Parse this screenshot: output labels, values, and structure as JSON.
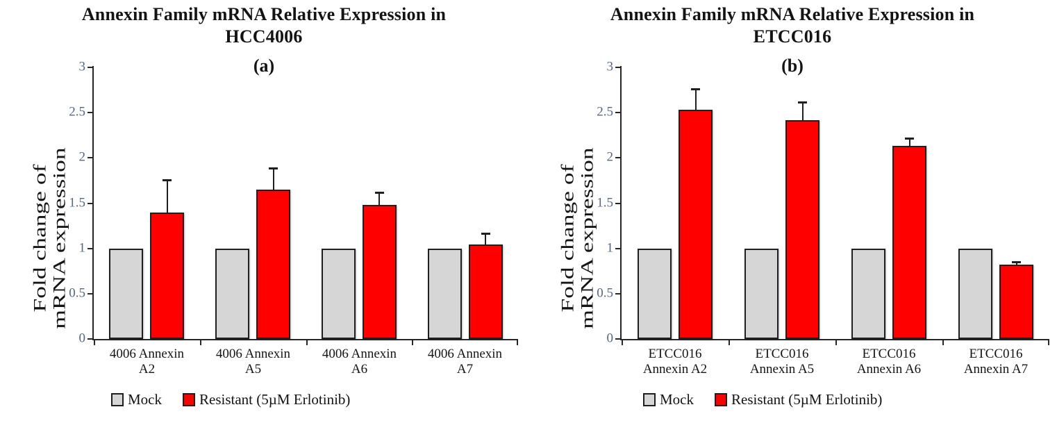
{
  "colors": {
    "mock_fill": "#d6d6d6",
    "resistant_fill": "#ff0000",
    "bar_border": "#1f1f1f",
    "axis": "#262626",
    "tick_label": "#54677f",
    "text": "#141414"
  },
  "legend": {
    "items": [
      {
        "name": "mock",
        "label": "Mock",
        "color": "#d6d6d6"
      },
      {
        "name": "resistant",
        "label": "Resistant (5µM Erlotinib)",
        "color": "#ff0000"
      }
    ]
  },
  "chart_data": [
    {
      "type": "bar",
      "title_line1": "Annexin  Family mRNA Relative  Expression in",
      "title_line2": "HCC4006",
      "panel_label": "(a)",
      "ylabel_line1": "Fold change of",
      "ylabel_line2": "mRNA expression",
      "ylim": [
        0,
        3
      ],
      "yticks": [
        "0",
        "0.5",
        "1",
        "1.5",
        "2",
        "2.5",
        "3"
      ],
      "ytick_values": [
        0,
        0.5,
        1,
        1.5,
        2,
        2.5,
        3
      ],
      "grid": false,
      "legend_position": "bottom",
      "categories": [
        "4006 Annexin A2",
        "4006 Annexin A5",
        "4006 Annexin A6",
        "4006 Annexin A7"
      ],
      "category_label_lines": [
        [
          "4006 Annexin",
          "A2"
        ],
        [
          "4006 Annexin",
          "A5"
        ],
        [
          "4006 Annexin",
          "A6"
        ],
        [
          "4006 Annexin",
          "A7"
        ]
      ],
      "series": [
        {
          "name": "Mock",
          "values": [
            1.0,
            1.0,
            1.0,
            1.0
          ],
          "errors": [
            0,
            0,
            0,
            0
          ]
        },
        {
          "name": "Resistant (5µM Erlotinib)",
          "values": [
            1.4,
            1.65,
            1.48,
            1.04
          ],
          "errors": [
            0.36,
            0.24,
            0.14,
            0.13
          ]
        }
      ]
    },
    {
      "type": "bar",
      "title_line1": "Annexin Family mRNA Relative Expression in",
      "title_line2": "ETCC016",
      "panel_label": "(b)",
      "ylabel_line1": "Fold change of",
      "ylabel_line2": "mRNA expression",
      "ylim": [
        0,
        3
      ],
      "yticks": [
        "0",
        "0.5",
        "1",
        "1.5",
        "2",
        "2.5",
        "3"
      ],
      "ytick_values": [
        0,
        0.5,
        1,
        1.5,
        2,
        2.5,
        3
      ],
      "grid": false,
      "legend_position": "bottom",
      "categories": [
        "ETCC016 Annexin A2",
        "ETCC016 Annexin A5",
        "ETCC016 Annexin A6",
        "ETCC016 Annexin A7"
      ],
      "category_label_lines": [
        [
          "ETCC016",
          "Annexin A2"
        ],
        [
          "ETCC016",
          "Annexin A5"
        ],
        [
          "ETCC016",
          "Annexin A6"
        ],
        [
          "ETCC016",
          "Annexin A7"
        ]
      ],
      "series": [
        {
          "name": "Mock",
          "values": [
            1.0,
            1.0,
            1.0,
            1.0
          ],
          "errors": [
            0,
            0,
            0,
            0
          ]
        },
        {
          "name": "Resistant (5µM Erlotinib)",
          "values": [
            2.53,
            2.42,
            2.13,
            0.82
          ],
          "errors": [
            0.23,
            0.2,
            0.09,
            0.03
          ]
        }
      ]
    }
  ]
}
